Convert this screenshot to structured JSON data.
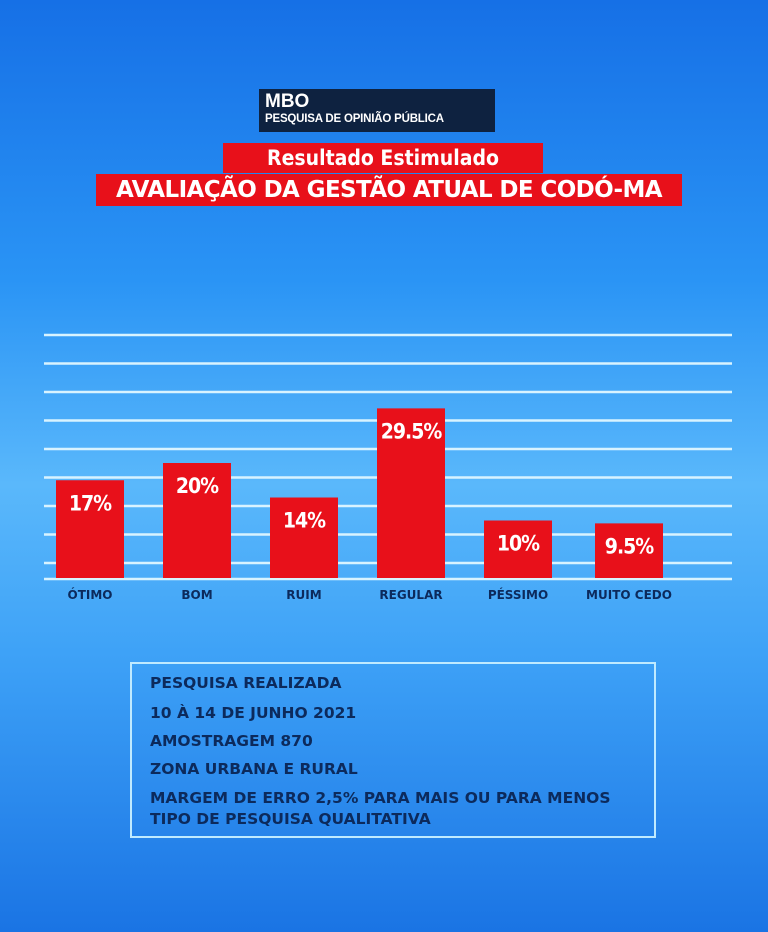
{
  "header": {
    "brand": "MBO",
    "brand_subtitle": "PESQUISA DE OPINIÃO PÚBLICA",
    "subtitle": "Resultado Estimulado",
    "title": "AVALIAÇÃO DA GESTÃO ATUAL DE CODÓ-MA"
  },
  "chart_data": {
    "type": "bar",
    "title": "AVALIAÇÃO DA GESTÃO ATUAL DE CODÓ-MA",
    "subtitle": "Resultado Estimulado",
    "categories": [
      "ÓTIMO",
      "BOM",
      "RUIM",
      "REGULAR",
      "PÉSSIMO",
      "MUITO CEDO"
    ],
    "values": [
      17,
      20,
      14,
      29.5,
      10,
      9.5
    ],
    "data_labels": [
      "17%",
      "20%",
      "14%",
      "29.5%",
      "10%",
      "9.5%"
    ],
    "unit": "%",
    "grid": true,
    "bar_color": "#e8101a"
  },
  "info": {
    "lines": [
      "PESQUISA REALIZADA",
      "10 À 14 DE JUNHO 2021",
      "AMOSTRAGEM 870",
      "ZONA URBANA E RURAL",
      "MARGEM DE ERRO 2,5% PARA MAIS OU PARA MENOS",
      "TIPO DE PESQUISA QUALITATIVA"
    ]
  }
}
